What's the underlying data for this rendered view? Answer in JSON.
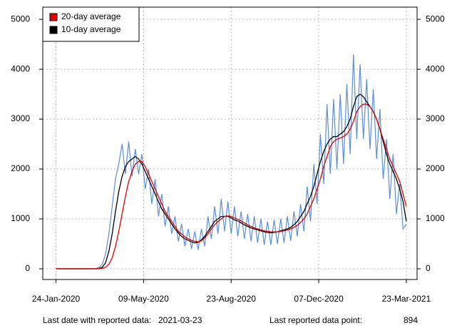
{
  "chart_data": {
    "type": "line",
    "x": [
      "2020-01-24",
      "2020-01-28",
      "2020-02-01",
      "2020-02-05",
      "2020-02-09",
      "2020-02-13",
      "2020-02-17",
      "2020-02-21",
      "2020-02-25",
      "2020-02-29",
      "2020-03-04",
      "2020-03-08",
      "2020-03-12",
      "2020-03-16",
      "2020-03-20",
      "2020-03-24",
      "2020-03-28",
      "2020-04-01",
      "2020-04-05",
      "2020-04-09",
      "2020-04-13",
      "2020-04-17",
      "2020-04-21",
      "2020-04-25",
      "2020-04-29",
      "2020-05-03",
      "2020-05-07",
      "2020-05-11",
      "2020-05-15",
      "2020-05-19",
      "2020-05-23",
      "2020-05-27",
      "2020-05-31",
      "2020-06-04",
      "2020-06-08",
      "2020-06-12",
      "2020-06-16",
      "2020-06-20",
      "2020-06-24",
      "2020-06-28",
      "2020-07-02",
      "2020-07-06",
      "2020-07-10",
      "2020-07-14",
      "2020-07-18",
      "2020-07-22",
      "2020-07-26",
      "2020-07-30",
      "2020-08-03",
      "2020-08-07",
      "2020-08-11",
      "2020-08-15",
      "2020-08-19",
      "2020-08-23",
      "2020-08-27",
      "2020-08-31",
      "2020-09-04",
      "2020-09-08",
      "2020-09-12",
      "2020-09-16",
      "2020-09-20",
      "2020-09-24",
      "2020-09-28",
      "2020-10-02",
      "2020-10-06",
      "2020-10-10",
      "2020-10-14",
      "2020-10-18",
      "2020-10-22",
      "2020-10-26",
      "2020-10-30",
      "2020-11-03",
      "2020-11-07",
      "2020-11-11",
      "2020-11-15",
      "2020-11-19",
      "2020-11-23",
      "2020-11-27",
      "2020-12-01",
      "2020-12-05",
      "2020-12-09",
      "2020-12-13",
      "2020-12-17",
      "2020-12-21",
      "2020-12-25",
      "2020-12-29",
      "2021-01-02",
      "2021-01-06",
      "2021-01-10",
      "2021-01-14",
      "2021-01-18",
      "2021-01-22",
      "2021-01-26",
      "2021-01-30",
      "2021-02-03",
      "2021-02-07",
      "2021-02-11",
      "2021-02-15",
      "2021-02-19",
      "2021-02-23",
      "2021-02-27",
      "2021-03-03",
      "2021-03-07",
      "2021-03-11",
      "2021-03-15",
      "2021-03-19",
      "2021-03-23"
    ],
    "series": [
      {
        "color": "#5b8fd6",
        "values": [
          0,
          0,
          0,
          0,
          0,
          0,
          0,
          0,
          0,
          0,
          0,
          2,
          6,
          25,
          90,
          300,
          700,
          1250,
          1800,
          2100,
          2500,
          1900,
          2550,
          1850,
          2400,
          1900,
          2300,
          1600,
          2000,
          1300,
          1800,
          1050,
          1500,
          850,
          1250,
          700,
          1050,
          550,
          900,
          450,
          800,
          400,
          750,
          380,
          800,
          450,
          1050,
          600,
          1250,
          700,
          1400,
          750,
          1350,
          700,
          1250,
          650,
          1150,
          600,
          1100,
          550,
          1050,
          520,
          1000,
          480,
          950,
          480,
          980,
          500,
          1000,
          520,
          1050,
          560,
          1150,
          650,
          1300,
          750,
          1650,
          950,
          2100,
          1300,
          2700,
          1700,
          3300,
          1900,
          3400,
          2000,
          3500,
          2100,
          3700,
          2300,
          4300,
          2600,
          4100,
          2600,
          3800,
          2400,
          3600,
          2200,
          3200,
          1800,
          2600,
          1400,
          2300,
          1100,
          1700,
          800,
          894
        ]
      },
      {
        "name": "10-day average",
        "color": "#000000",
        "values": [
          0,
          0,
          0,
          0,
          0,
          0,
          0,
          0,
          0,
          0,
          0,
          0,
          2,
          8,
          30,
          120,
          350,
          700,
          1150,
          1550,
          1850,
          2050,
          2150,
          2200,
          2250,
          2200,
          2100,
          1950,
          1800,
          1650,
          1500,
          1350,
          1200,
          1100,
          1000,
          900,
          800,
          720,
          650,
          600,
          570,
          540,
          520,
          530,
          580,
          650,
          750,
          850,
          950,
          1000,
          1050,
          1050,
          1050,
          1020,
          980,
          960,
          920,
          880,
          850,
          820,
          800,
          780,
          760,
          740,
          730,
          720,
          730,
          740,
          760,
          780,
          800,
          830,
          880,
          950,
          1050,
          1150,
          1300,
          1450,
          1650,
          1900,
          2150,
          2350,
          2500,
          2600,
          2650,
          2650,
          2700,
          2750,
          2850,
          3000,
          3250,
          3450,
          3500,
          3450,
          3350,
          3250,
          3150,
          3000,
          2800,
          2550,
          2300,
          2100,
          1950,
          1800,
          1600,
          1350,
          950
        ]
      },
      {
        "name": "20-day average",
        "color": "#e00000",
        "values": [
          0,
          0,
          0,
          0,
          0,
          0,
          0,
          0,
          0,
          0,
          0,
          0,
          0,
          2,
          8,
          30,
          90,
          220,
          450,
          750,
          1100,
          1450,
          1750,
          1950,
          2100,
          2150,
          2150,
          2050,
          1900,
          1750,
          1600,
          1450,
          1300,
          1150,
          1050,
          950,
          850,
          750,
          700,
          640,
          600,
          570,
          550,
          540,
          560,
          620,
          700,
          800,
          880,
          950,
          1000,
          1050,
          1060,
          1050,
          1020,
          990,
          960,
          920,
          880,
          850,
          820,
          800,
          780,
          760,
          750,
          740,
          740,
          740,
          750,
          760,
          780,
          800,
          830,
          870,
          930,
          1000,
          1100,
          1250,
          1400,
          1600,
          1800,
          2050,
          2250,
          2450,
          2550,
          2600,
          2620,
          2650,
          2700,
          2800,
          2950,
          3150,
          3250,
          3300,
          3300,
          3250,
          3150,
          3000,
          2800,
          2600,
          2400,
          2200,
          2050,
          1900,
          1750,
          1500,
          1250
        ]
      }
    ],
    "xlim": [
      "2020-01-08",
      "2021-04-05"
    ],
    "xticks": [
      {
        "value": "2020-01-24",
        "label": "24-Jan-2020"
      },
      {
        "value": "2020-05-09",
        "label": "09-May-2020"
      },
      {
        "value": "2020-08-23",
        "label": "23-Aug-2020"
      },
      {
        "value": "2020-12-07",
        "label": "07-Dec-2020"
      },
      {
        "value": "2021-03-23",
        "label": "23-Mar-2021"
      }
    ],
    "ylim": [
      -215,
      5245
    ],
    "yticks": [
      0,
      1000,
      2000,
      3000,
      4000,
      5000
    ],
    "grid": true,
    "legend": "top-left"
  },
  "footer": {
    "date_label": "Last date with reported data:",
    "date_value": "2021-03-23",
    "point_label": "Last reported data point:",
    "point_value": "894"
  }
}
